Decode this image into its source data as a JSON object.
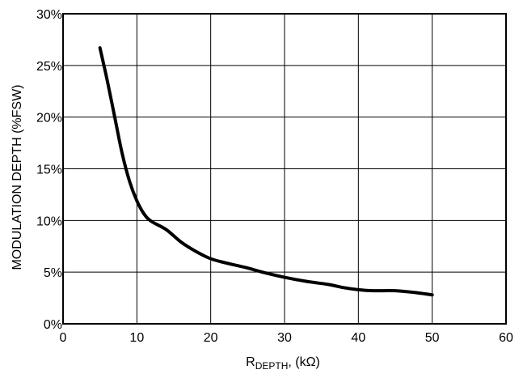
{
  "chart_data": {
    "type": "line",
    "title": "",
    "xlabel": {
      "main": "R",
      "subscript": "DEPTH",
      "suffix": ", (kΩ)"
    },
    "ylabel": "MODULATION DEPTH (%FSW)",
    "xlim": [
      0,
      60
    ],
    "ylim": [
      0,
      30
    ],
    "x_ticks": [
      "0",
      "10",
      "20",
      "30",
      "40",
      "50",
      "60"
    ],
    "y_ticks": [
      "0%",
      "5%",
      "10%",
      "15%",
      "20%",
      "25%",
      "30%"
    ],
    "grid": true,
    "legend": "none",
    "series": [
      {
        "x": [
          5,
          6,
          7,
          8,
          9,
          10,
          11,
          12,
          14,
          16,
          18,
          20,
          22,
          25,
          27,
          30,
          33,
          36,
          38,
          40,
          42,
          45,
          48,
          50
        ],
        "y": [
          26.7,
          23.5,
          20.0,
          16.5,
          13.8,
          11.9,
          10.6,
          9.9,
          9.1,
          7.9,
          7.0,
          6.3,
          5.9,
          5.4,
          5.0,
          4.5,
          4.1,
          3.8,
          3.5,
          3.3,
          3.2,
          3.2,
          3.0,
          2.8
        ],
        "color": "#000000"
      }
    ]
  }
}
